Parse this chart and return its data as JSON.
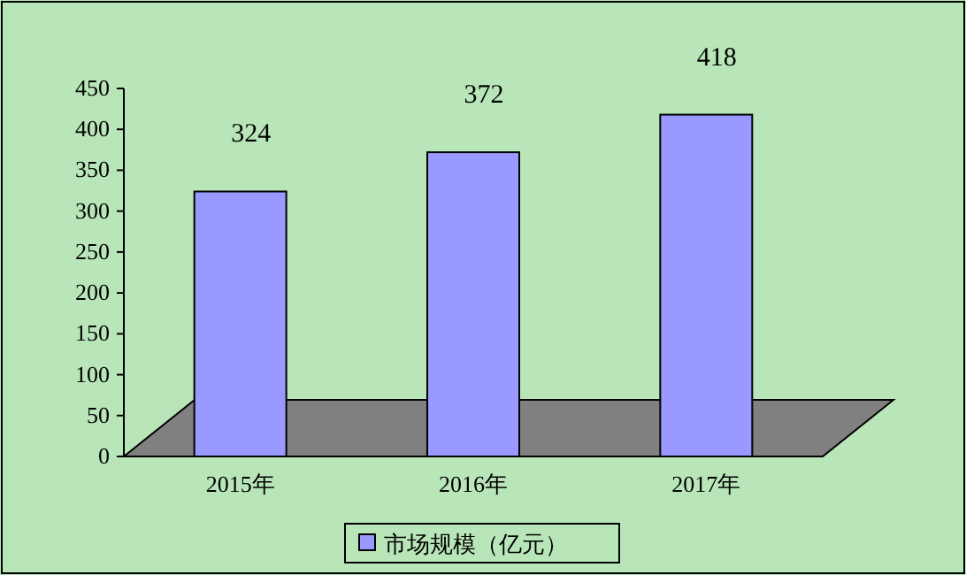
{
  "chart_data": {
    "type": "bar",
    "categories": [
      "2015年",
      "2016年",
      "2017年"
    ],
    "series": [
      {
        "name": "市场规模（亿元）",
        "color": "#9999ff",
        "values": [
          324,
          372,
          418
        ]
      }
    ],
    "ylim": [
      0,
      450
    ],
    "yticks": [
      0,
      50,
      100,
      150,
      200,
      250,
      300,
      350,
      400,
      450
    ],
    "data_labels": true,
    "legend": "bottom"
  }
}
